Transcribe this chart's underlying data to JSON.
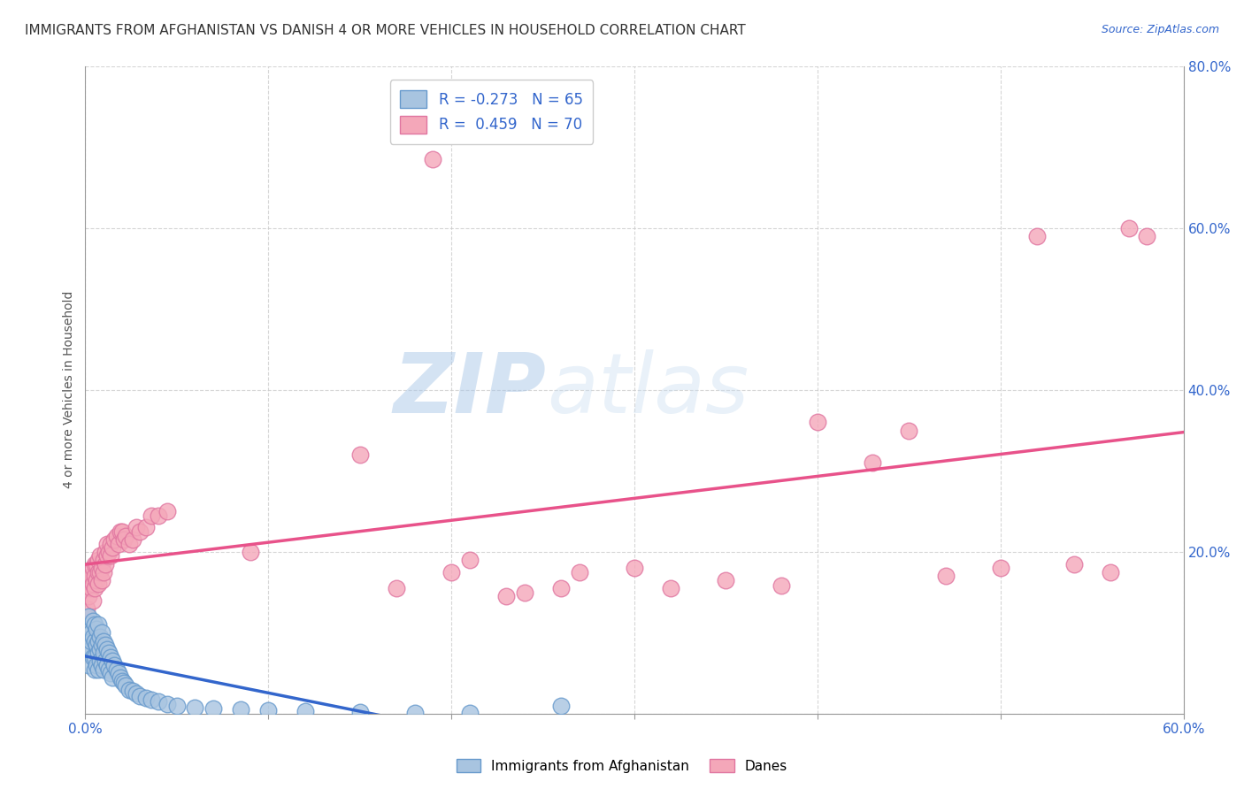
{
  "title": "IMMIGRANTS FROM AFGHANISTAN VS DANISH 4 OR MORE VEHICLES IN HOUSEHOLD CORRELATION CHART",
  "source": "Source: ZipAtlas.com",
  "ylabel": "4 or more Vehicles in Household",
  "xlim": [
    0.0,
    0.6
  ],
  "ylim": [
    0.0,
    0.8
  ],
  "xticks": [
    0.0,
    0.1,
    0.2,
    0.3,
    0.4,
    0.5,
    0.6
  ],
  "xticklabels": [
    "0.0%",
    "",
    "",
    "",
    "",
    "",
    "60.0%"
  ],
  "yticks": [
    0.0,
    0.2,
    0.4,
    0.6,
    0.8
  ],
  "yticklabels_right": [
    "",
    "20.0%",
    "40.0%",
    "60.0%",
    "80.0%"
  ],
  "legend_R_afg": "-0.273",
  "legend_N_afg": "65",
  "legend_R_dan": "0.459",
  "legend_N_dan": "70",
  "afg_color": "#a8c4e0",
  "dan_color": "#f4a7b9",
  "afg_edge": "#6699cc",
  "dan_edge": "#e075a0",
  "reg_afg_color": "#3366cc",
  "reg_dan_color": "#e8528a",
  "watermark_zip": "ZIP",
  "watermark_atlas": "atlas",
  "background_color": "#ffffff",
  "grid_color": "#cccccc",
  "title_fontsize": 11,
  "axis_label_fontsize": 10,
  "tick_fontsize": 11,
  "legend_fontsize": 12,
  "afg_x": [
    0.001,
    0.001,
    0.002,
    0.002,
    0.003,
    0.003,
    0.003,
    0.004,
    0.004,
    0.004,
    0.005,
    0.005,
    0.005,
    0.005,
    0.006,
    0.006,
    0.006,
    0.007,
    0.007,
    0.007,
    0.007,
    0.008,
    0.008,
    0.008,
    0.009,
    0.009,
    0.009,
    0.01,
    0.01,
    0.01,
    0.011,
    0.011,
    0.012,
    0.012,
    0.013,
    0.013,
    0.014,
    0.014,
    0.015,
    0.015,
    0.016,
    0.017,
    0.018,
    0.019,
    0.02,
    0.021,
    0.022,
    0.024,
    0.026,
    0.028,
    0.03,
    0.033,
    0.036,
    0.04,
    0.045,
    0.05,
    0.06,
    0.07,
    0.085,
    0.1,
    0.12,
    0.15,
    0.18,
    0.21,
    0.26
  ],
  "afg_y": [
    0.105,
    0.085,
    0.12,
    0.06,
    0.1,
    0.08,
    0.09,
    0.115,
    0.095,
    0.07,
    0.11,
    0.09,
    0.07,
    0.055,
    0.105,
    0.085,
    0.06,
    0.11,
    0.09,
    0.075,
    0.055,
    0.095,
    0.08,
    0.065,
    0.1,
    0.085,
    0.06,
    0.09,
    0.075,
    0.055,
    0.085,
    0.065,
    0.08,
    0.06,
    0.075,
    0.055,
    0.07,
    0.05,
    0.065,
    0.045,
    0.06,
    0.055,
    0.05,
    0.045,
    0.04,
    0.038,
    0.035,
    0.03,
    0.028,
    0.025,
    0.022,
    0.02,
    0.018,
    0.015,
    0.012,
    0.01,
    0.008,
    0.006,
    0.005,
    0.004,
    0.003,
    0.002,
    0.001,
    0.001,
    0.01
  ],
  "dan_x": [
    0.001,
    0.001,
    0.002,
    0.002,
    0.003,
    0.003,
    0.004,
    0.004,
    0.004,
    0.005,
    0.005,
    0.005,
    0.006,
    0.006,
    0.007,
    0.007,
    0.007,
    0.008,
    0.008,
    0.009,
    0.009,
    0.01,
    0.01,
    0.011,
    0.011,
    0.012,
    0.012,
    0.013,
    0.014,
    0.014,
    0.015,
    0.016,
    0.017,
    0.018,
    0.019,
    0.02,
    0.021,
    0.022,
    0.024,
    0.026,
    0.028,
    0.03,
    0.033,
    0.036,
    0.04,
    0.045,
    0.09,
    0.15,
    0.17,
    0.2,
    0.24,
    0.27,
    0.3,
    0.32,
    0.35,
    0.38,
    0.4,
    0.43,
    0.45,
    0.47,
    0.5,
    0.52,
    0.54,
    0.56,
    0.58,
    0.19,
    0.21,
    0.23,
    0.26,
    0.57
  ],
  "dan_y": [
    0.13,
    0.155,
    0.145,
    0.165,
    0.155,
    0.17,
    0.16,
    0.18,
    0.14,
    0.17,
    0.155,
    0.185,
    0.165,
    0.185,
    0.175,
    0.16,
    0.19,
    0.175,
    0.195,
    0.18,
    0.165,
    0.19,
    0.175,
    0.2,
    0.185,
    0.195,
    0.21,
    0.2,
    0.21,
    0.195,
    0.205,
    0.215,
    0.22,
    0.21,
    0.225,
    0.225,
    0.215,
    0.22,
    0.21,
    0.215,
    0.23,
    0.225,
    0.23,
    0.245,
    0.245,
    0.25,
    0.2,
    0.32,
    0.155,
    0.175,
    0.15,
    0.175,
    0.18,
    0.155,
    0.165,
    0.158,
    0.36,
    0.31,
    0.35,
    0.17,
    0.18,
    0.59,
    0.185,
    0.175,
    0.59,
    0.685,
    0.19,
    0.145,
    0.155,
    0.6
  ]
}
